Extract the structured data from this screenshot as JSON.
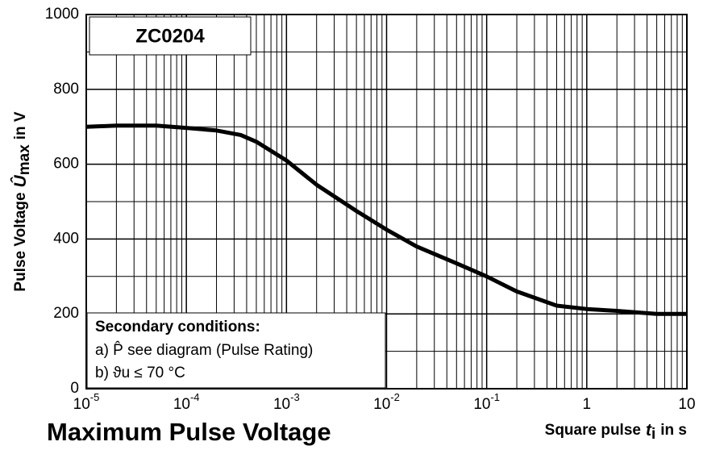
{
  "chart_data": {
    "type": "line",
    "title": "Maximum Pulse Voltage",
    "ylabel": {
      "text": "Pulse Voltage",
      "symbol": "Û",
      "subscript": "max",
      "unit": "in V"
    },
    "xlabel": {
      "text": "Square pulse",
      "symbol": "t",
      "subscript": "i",
      "unit": "in s"
    },
    "annotations": [
      "ZC0204",
      "Secondary conditions:",
      "a) P̂ see diagram (Pulse Rating)",
      "b) ϑu ≤ 70 °C"
    ],
    "x": [
      1e-05,
      2e-05,
      5e-05,
      0.0001,
      0.0002,
      0.00035,
      0.0005,
      0.001,
      0.002,
      0.005,
      0.01,
      0.02,
      0.05,
      0.1,
      0.2,
      0.5,
      1,
      2,
      5,
      10
    ],
    "series": [
      {
        "name": "ZC0204",
        "color": "#000000",
        "values": [
          700,
          703,
          703,
          697,
          690,
          678,
          660,
          610,
          545,
          475,
          425,
          380,
          335,
          300,
          260,
          222,
          213,
          208,
          200,
          200
        ]
      }
    ],
    "xscale": "log",
    "xlim": [
      1e-05,
      10
    ],
    "xticks": [
      {
        "value": 1e-05,
        "label": "10",
        "exponent": "-5"
      },
      {
        "value": 0.0001,
        "label": "10",
        "exponent": "-4"
      },
      {
        "value": 0.001,
        "label": "10",
        "exponent": "-3"
      },
      {
        "value": 0.01,
        "label": "10",
        "exponent": "-2"
      },
      {
        "value": 0.1,
        "label": "10",
        "exponent": "-1"
      },
      1,
      10
    ],
    "ylim": [
      0,
      1000
    ],
    "yticks": [
      0,
      200,
      400,
      600,
      800,
      1000
    ],
    "grid": true,
    "minor_grid": true
  }
}
